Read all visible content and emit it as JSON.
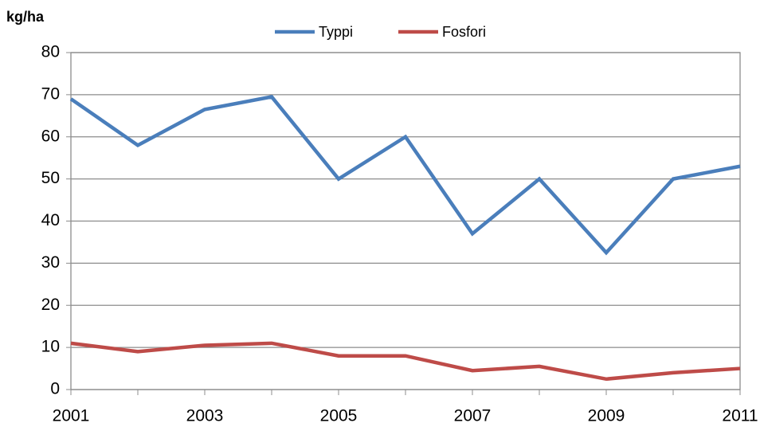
{
  "chart_data": {
    "type": "line",
    "y_label": "kg/ha",
    "x": [
      2001,
      2002,
      2003,
      2004,
      2005,
      2006,
      2007,
      2008,
      2009,
      2010,
      2011
    ],
    "series": [
      {
        "name": "Typpi",
        "color": "#4a7ebb",
        "values": [
          69,
          58,
          66.5,
          69.5,
          50,
          60,
          37,
          50,
          32.5,
          50,
          53
        ]
      },
      {
        "name": "Fosfori",
        "color": "#be4b48",
        "values": [
          11,
          9,
          10.5,
          11,
          8,
          8,
          4.5,
          5.5,
          2.5,
          4,
          5
        ]
      }
    ],
    "xlim": [
      2001,
      2011
    ],
    "xticks": [
      2001,
      2003,
      2005,
      2007,
      2009,
      2011
    ],
    "ylim": [
      0,
      80
    ],
    "yticks": [
      0,
      10,
      20,
      30,
      40,
      50,
      60,
      70,
      80
    ],
    "grid": true,
    "legend": "top"
  }
}
